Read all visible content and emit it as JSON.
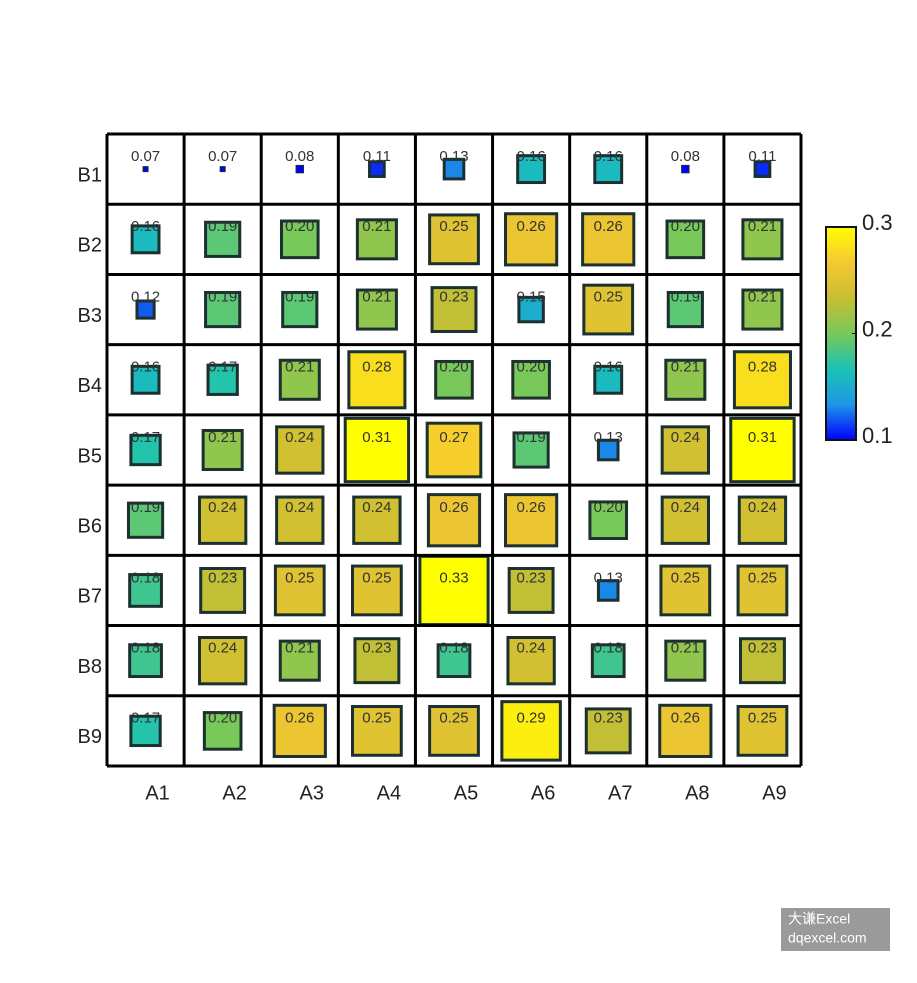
{
  "chart_data": {
    "type": "sized-heatmap",
    "columns": [
      "A1",
      "A2",
      "A3",
      "A4",
      "A5",
      "A6",
      "A7",
      "A8",
      "A9"
    ],
    "rows": [
      "B1",
      "B2",
      "B3",
      "B4",
      "B5",
      "B6",
      "B7",
      "B8",
      "B9"
    ],
    "values": [
      [
        0.07,
        0.07,
        0.08,
        0.11,
        0.13,
        0.16,
        0.16,
        0.08,
        0.11
      ],
      [
        0.16,
        0.19,
        0.2,
        0.21,
        0.25,
        0.26,
        0.26,
        0.2,
        0.21
      ],
      [
        0.12,
        0.19,
        0.19,
        0.21,
        0.23,
        0.15,
        0.25,
        0.19,
        0.21
      ],
      [
        0.16,
        0.17,
        0.21,
        0.28,
        0.2,
        0.2,
        0.16,
        0.21,
        0.28
      ],
      [
        0.17,
        0.21,
        0.24,
        0.31,
        0.27,
        0.19,
        0.13,
        0.24,
        0.31
      ],
      [
        0.19,
        0.24,
        0.24,
        0.24,
        0.26,
        0.26,
        0.2,
        0.24,
        0.24
      ],
      [
        0.18,
        0.23,
        0.25,
        0.25,
        0.33,
        0.23,
        0.13,
        0.25,
        0.25
      ],
      [
        0.18,
        0.24,
        0.21,
        0.23,
        0.18,
        0.24,
        0.18,
        0.21,
        0.23
      ],
      [
        0.17,
        0.2,
        0.26,
        0.25,
        0.25,
        0.29,
        0.23,
        0.26,
        0.25
      ]
    ],
    "value_labels": [
      [
        "0.07",
        "0.07",
        "0.08",
        "0.11",
        "0.13",
        "0.16",
        "0.16",
        "0.08",
        "0.11"
      ],
      [
        "0.16",
        "0.19",
        "0.20",
        "0.21",
        "0.25",
        "0.26",
        "0.26",
        "0.20",
        "0.21"
      ],
      [
        "0.12",
        "0.19",
        "0.19",
        "0.21",
        "0.23",
        "0.15",
        "0.25",
        "0.19",
        "0.21"
      ],
      [
        "0.16",
        "0.17",
        "0.21",
        "0.28",
        "0.20",
        "0.20",
        "0.16",
        "0.21",
        "0.28"
      ],
      [
        "0.17",
        "0.21",
        "0.24",
        "0.31",
        "0.27",
        "0.19",
        "0.13",
        "0.24",
        "0.31"
      ],
      [
        "0.19",
        "0.24",
        "0.24",
        "0.24",
        "0.26",
        "0.26",
        "0.20",
        "0.24",
        "0.24"
      ],
      [
        "0.18",
        "0.23",
        "0.25",
        "0.25",
        "0.33",
        "0.23",
        "0.13",
        "0.25",
        "0.25"
      ],
      [
        "0.18",
        "0.24",
        "0.21",
        "0.23",
        "0.18",
        "0.24",
        "0.18",
        "0.21",
        "0.23"
      ],
      [
        "0.17",
        "0.20",
        "0.26",
        "0.25",
        "0.25",
        "0.29",
        "0.23",
        "0.26",
        "0.25"
      ]
    ],
    "colorbar_lim": [
      0.1,
      0.3
    ],
    "colorbar_ticks": [
      0.1,
      0.2,
      0.3
    ],
    "colorscale": [
      "#0000ff",
      "#1e96e6",
      "#19c3b4",
      "#78c85a",
      "#c8be32",
      "#f5c832",
      "#ffff00"
    ],
    "watermark": [
      "大谦Excel",
      "dqexcel.com"
    ]
  }
}
